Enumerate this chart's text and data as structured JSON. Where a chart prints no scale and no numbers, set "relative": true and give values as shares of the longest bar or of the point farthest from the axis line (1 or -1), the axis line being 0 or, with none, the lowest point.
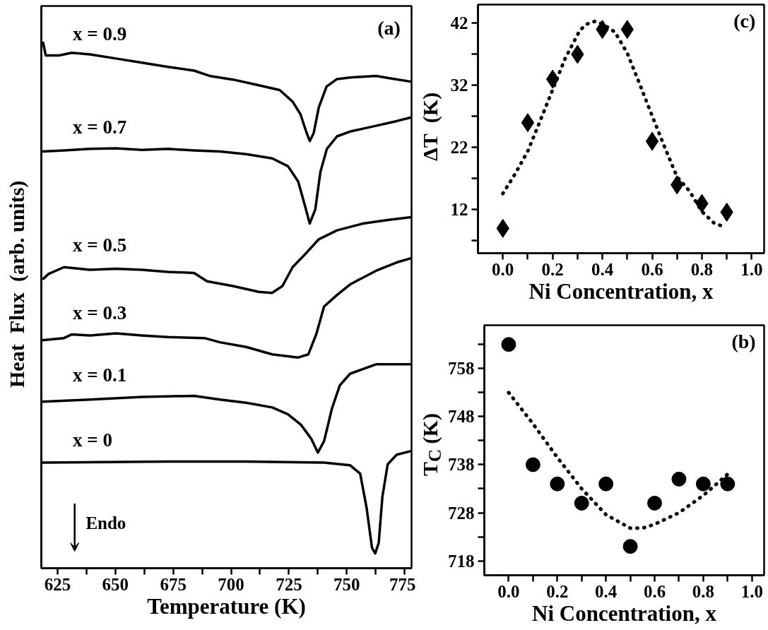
{
  "chart_data": [
    {
      "type": "line",
      "relative": true,
      "xlabel": "Temperature (K)",
      "ylabel": "Heat  Flux  (arb. units)",
      "xlim": [
        618,
        778
      ],
      "xticks": [
        625,
        {
          "value": 637.5,
          "label": null
        },
        650,
        {
          "value": 662.5,
          "label": null
        },
        675,
        {
          "value": 687.5,
          "label": null
        },
        700,
        {
          "value": 712.5,
          "label": null
        },
        725,
        {
          "value": 737.5,
          "label": null
        },
        750,
        {
          "value": 762.5,
          "label": null
        },
        775
      ],
      "annotations": [
        "(a)",
        "Endo"
      ],
      "line_style": "solid",
      "series": [
        {
          "name": "x = 0.9",
          "color": "#000000",
          "x": [
            618.8,
            619.9,
            625.6,
            631.2,
            639,
            650.3,
            661.5,
            672.8,
            684,
            690.7,
            700.8,
            712,
            721,
            726.6,
            730,
            732.3,
            734,
            735.7,
            737.9,
            741.3,
            745.8,
            751.4,
            762.6,
            769.4,
            777.8
          ],
          "values": [
            1.0,
            0.976,
            0.976,
            0.981,
            0.978,
            0.97,
            0.962,
            0.954,
            0.947,
            0.937,
            0.93,
            0.919,
            0.91,
            0.888,
            0.864,
            0.833,
            0.813,
            0.828,
            0.877,
            0.917,
            0.931,
            0.934,
            0.937,
            0.932,
            0.926
          ]
        },
        {
          "name": "x = 0.7",
          "color": "#000000",
          "x": [
            618.3,
            627.8,
            639,
            650.3,
            661.5,
            672.8,
            684,
            695.3,
            706.5,
            717.8,
            724.6,
            729,
            731.8,
            734,
            736.4,
            738.6,
            741.4,
            745.8,
            751.4,
            762.6,
            771.6,
            777.8
          ],
          "values": [
            0.793,
            0.795,
            0.798,
            0.799,
            0.796,
            0.798,
            0.795,
            0.793,
            0.788,
            0.78,
            0.765,
            0.736,
            0.692,
            0.656,
            0.683,
            0.754,
            0.798,
            0.822,
            0.831,
            0.842,
            0.851,
            0.858
          ]
        },
        {
          "name": "x = 0.5",
          "color": "#000000",
          "x": [
            618.9,
            621.1,
            627.8,
            639,
            650.3,
            661.5,
            672.8,
            684,
            689.6,
            700.8,
            712,
            717.7,
            722.2,
            726.6,
            732.3,
            737.9,
            745.8,
            757,
            768.2,
            777.8
          ],
          "values": [
            0.551,
            0.56,
            0.573,
            0.568,
            0.57,
            0.568,
            0.564,
            0.562,
            0.546,
            0.537,
            0.526,
            0.524,
            0.537,
            0.573,
            0.599,
            0.626,
            0.643,
            0.656,
            0.663,
            0.668
          ]
        },
        {
          "name": "x = 0.3",
          "color": "#000000",
          "x": [
            618.3,
            627.8,
            631.2,
            639,
            650.3,
            661.5,
            672.8,
            688.5,
            695.2,
            706.5,
            717.8,
            729,
            733.4,
            736.8,
            740.2,
            745.8,
            751.4,
            762.6,
            771.6,
            777.8
          ],
          "values": [
            0.434,
            0.438,
            0.445,
            0.443,
            0.447,
            0.443,
            0.44,
            0.438,
            0.43,
            0.421,
            0.407,
            0.401,
            0.407,
            0.445,
            0.498,
            0.52,
            0.54,
            0.566,
            0.582,
            0.59
          ]
        },
        {
          "name": "x = 0.1",
          "color": "#000000",
          "x": [
            618.3,
            639,
            661.5,
            684,
            695.2,
            706.5,
            717.8,
            724.6,
            730.2,
            734.7,
            737.5,
            740.2,
            743.6,
            747,
            751.4,
            762.6,
            777.8
          ],
          "values": [
            0.317,
            0.321,
            0.326,
            0.328,
            0.321,
            0.315,
            0.306,
            0.293,
            0.273,
            0.246,
            0.22,
            0.242,
            0.304,
            0.348,
            0.37,
            0.388,
            0.388
          ]
        },
        {
          "name": "x = 0",
          "color": "#000000",
          "x": [
            618.3,
            672.8,
            706.5,
            740.2,
            751.4,
            755.8,
            758.6,
            760.9,
            762.3,
            763.8,
            765.4,
            767.7,
            771.6,
            777.8
          ],
          "values": [
            0.201,
            0.203,
            0.203,
            0.201,
            0.196,
            0.18,
            0.114,
            0.039,
            0.028,
            0.048,
            0.136,
            0.198,
            0.216,
            0.223
          ]
        }
      ]
    },
    {
      "type": "scatter",
      "xlabel": "Ni Concentration, x",
      "ylabel": "ΔT  (K)",
      "xlim": [
        -0.1,
        1.05
      ],
      "ylim": [
        5,
        45
      ],
      "xticks": [
        {
          "value": 0,
          "label": "0.0"
        },
        {
          "value": 0.1,
          "label": null
        },
        0.2,
        {
          "value": 0.3,
          "label": null
        },
        0.4,
        {
          "value": 0.5,
          "label": null
        },
        0.6,
        {
          "value": 0.7,
          "label": null
        },
        0.8,
        {
          "value": 0.9,
          "label": null
        },
        {
          "value": 1,
          "label": "1.0"
        }
      ],
      "yticks": [
        {
          "value": 7,
          "label": null
        },
        12,
        {
          "value": 17,
          "label": null
        },
        22,
        {
          "value": 27,
          "label": null
        },
        32,
        {
          "value": 37,
          "label": null
        },
        42
      ],
      "annotations": [
        "(c)"
      ],
      "series": [
        {
          "type": "scatter",
          "marker": "diamond",
          "color": "#000000",
          "x": [
            0,
            0.1,
            0.2,
            0.3,
            0.4,
            0.5,
            0.6,
            0.7,
            0.8,
            0.9
          ],
          "values": [
            9,
            26,
            33,
            37,
            41,
            41,
            23,
            16,
            13,
            11.6
          ]
        },
        {
          "type": "line",
          "line_style": "dotted",
          "color": "#000000",
          "x": [
            0,
            0.05,
            0.1,
            0.15,
            0.2,
            0.25,
            0.31,
            0.34,
            0.37,
            0.4,
            0.45,
            0.5,
            0.55,
            0.6,
            0.65,
            0.7,
            0.75,
            0.8,
            0.85,
            0.88
          ],
          "values": [
            14.6,
            17.8,
            21.4,
            26.3,
            31.3,
            36.3,
            40.9,
            41.9,
            42.3,
            41.9,
            40.6,
            37.2,
            32.2,
            27.1,
            22.1,
            17.3,
            15,
            11.7,
            9.8,
            9.4
          ]
        }
      ]
    },
    {
      "type": "scatter",
      "xlabel": "Ni Concentration, x",
      "ylabel": "T$_{C}$ (K)",
      "xlim": [
        -0.1,
        1.05
      ],
      "ylim": [
        715,
        767
      ],
      "xticks": [
        {
          "value": 0,
          "label": "0.0"
        },
        {
          "value": 0.1,
          "label": null
        },
        0.2,
        {
          "value": 0.3,
          "label": null
        },
        0.4,
        {
          "value": 0.5,
          "label": null
        },
        0.6,
        {
          "value": 0.7,
          "label": null
        },
        0.8,
        {
          "value": 0.9,
          "label": null
        },
        {
          "value": 1,
          "label": "1.0"
        }
      ],
      "yticks": [
        718,
        {
          "value": 723,
          "label": null
        },
        728,
        {
          "value": 733,
          "label": null
        },
        738,
        {
          "value": 743,
          "label": null
        },
        748,
        {
          "value": 753,
          "label": null
        },
        758,
        {
          "value": 763,
          "label": null
        }
      ],
      "annotations": [
        "(b)"
      ],
      "series": [
        {
          "type": "scatter",
          "marker": "circle",
          "color": "#000000",
          "x": [
            0,
            0.1,
            0.2,
            0.3,
            0.4,
            0.5,
            0.6,
            0.7,
            0.8,
            0.9
          ],
          "values": [
            763,
            738,
            734,
            730,
            734,
            721,
            730,
            735,
            734,
            734
          ]
        },
        {
          "type": "line",
          "line_style": "dotted",
          "color": "#000000",
          "x": [
            0,
            0.1,
            0.2,
            0.3,
            0.4,
            0.5,
            0.55,
            0.6,
            0.7,
            0.8,
            0.9
          ],
          "values": [
            753,
            746.5,
            739.5,
            733,
            727.6,
            724.8,
            724.8,
            725.6,
            728,
            731.6,
            736
          ]
        }
      ]
    }
  ]
}
